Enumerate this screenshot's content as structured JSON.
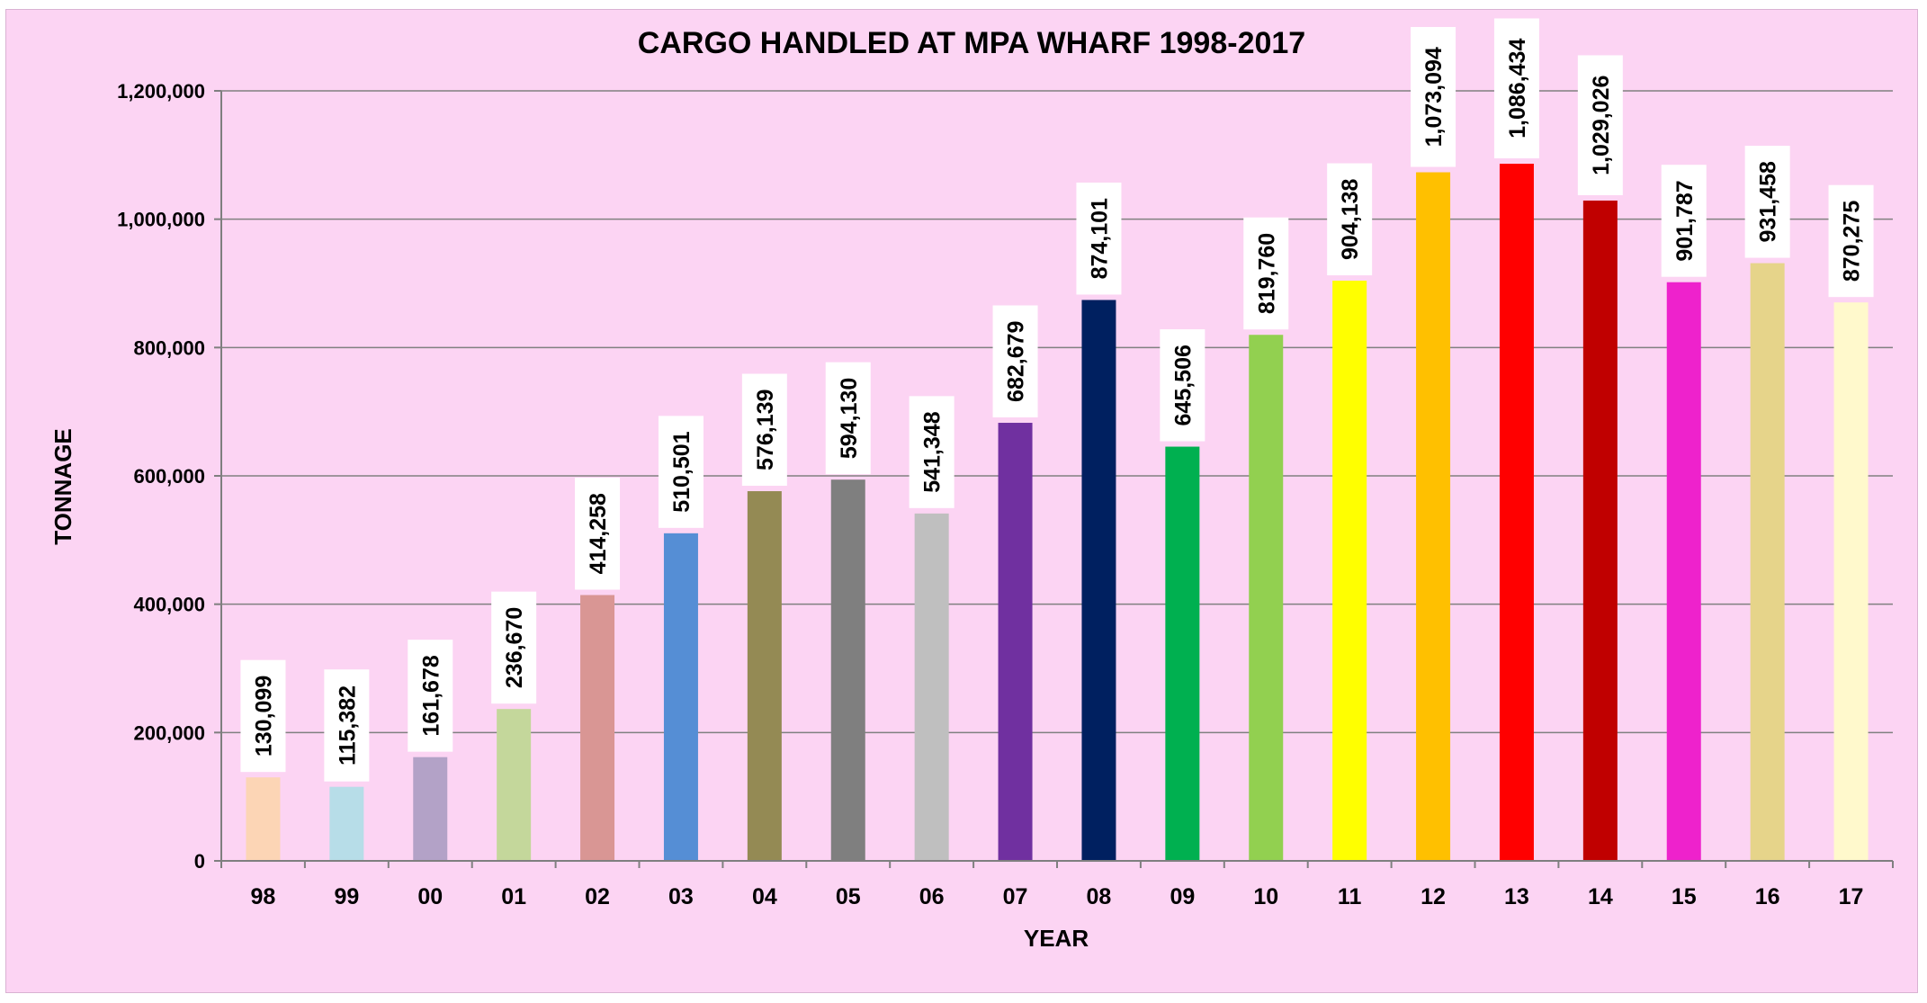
{
  "chart_data": {
    "type": "bar",
    "title": "CARGO HANDLED AT MPA WHARF 1998-2017",
    "xlabel": "YEAR",
    "ylabel": "TONNAGE",
    "ylim": [
      0,
      1200000
    ],
    "y_ticks": [
      0,
      200000,
      400000,
      600000,
      800000,
      1000000,
      1200000
    ],
    "y_tick_labels": [
      "0",
      "200,000",
      "400,000",
      "600,000",
      "800,000",
      "1,000,000",
      "1,200,000"
    ],
    "grid": true,
    "legend": "none",
    "categories": [
      "98",
      "99",
      "00",
      "01",
      "02",
      "03",
      "04",
      "05",
      "06",
      "07",
      "08",
      "09",
      "10",
      "11",
      "12",
      "13",
      "14",
      "15",
      "16",
      "17"
    ],
    "values": [
      130099,
      115382,
      161678,
      236670,
      414258,
      510501,
      576139,
      594130,
      541348,
      682679,
      874101,
      645506,
      819760,
      904138,
      1073094,
      1086434,
      1029026,
      901787,
      931458,
      870275
    ],
    "data_labels": [
      "130,099",
      "115,382",
      "161,678",
      "236,670",
      "414,258",
      "510,501",
      "576,139",
      "594,130",
      "541,348",
      "682,679",
      "874,101",
      "645,506",
      "819,760",
      "904,138",
      "1,073,094",
      "1,086,434",
      "1,029,026",
      "901,787",
      "931,458",
      "870,275"
    ],
    "bar_colors": [
      "#fcd5b5",
      "#b7dde8",
      "#b3a2c7",
      "#c4d79b",
      "#d99694",
      "#558ed5",
      "#948a54",
      "#7f7f7f",
      "#bfbfbf",
      "#7030a0",
      "#002060",
      "#00b050",
      "#92d050",
      "#ffff00",
      "#ffc000",
      "#ff0000",
      "#c00000",
      "#ee22cc",
      "#e6d48a",
      "#fff9cc"
    ],
    "background_color": "#fcd4f3"
  }
}
